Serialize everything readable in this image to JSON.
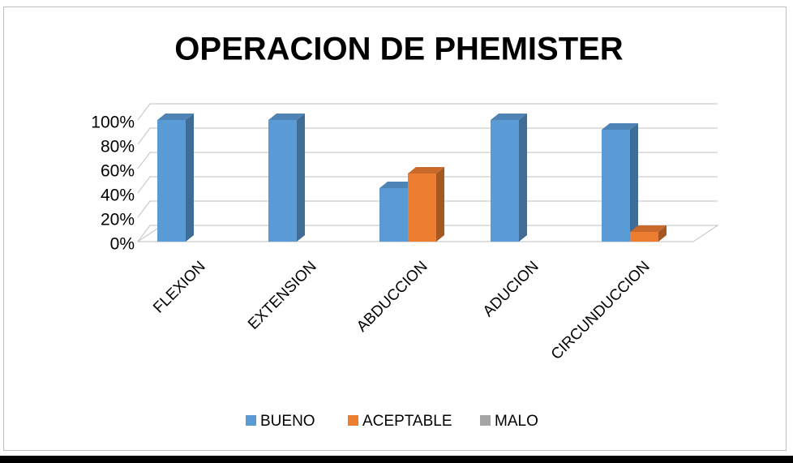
{
  "chart_data": {
    "type": "bar3d",
    "title": "OPERACION DE PHEMISTER",
    "categories": [
      "FLEXION",
      "EXTENSION",
      "ABDUCCION",
      "ADUCION",
      "CIRCUNDUCCION"
    ],
    "series": [
      {
        "name": "BUENO",
        "color": "#5b9bd5",
        "values": [
          100,
          100,
          44,
          100,
          92
        ]
      },
      {
        "name": "ACEPTABLE",
        "color": "#ed7d31",
        "values": [
          0,
          0,
          56,
          0,
          8
        ]
      },
      {
        "name": "MALO",
        "color": "#a5a5a5",
        "values": [
          0,
          0,
          0,
          0,
          0
        ]
      }
    ],
    "ylim": [
      0,
      100
    ],
    "yticks": [
      {
        "value": 0,
        "label": "0%"
      },
      {
        "value": 20,
        "label": "20%"
      },
      {
        "value": 40,
        "label": "40%"
      },
      {
        "value": 60,
        "label": "60%"
      },
      {
        "value": 80,
        "label": "80%"
      },
      {
        "value": 100,
        "label": "100%"
      }
    ],
    "grid": true,
    "legend": "bottom"
  }
}
